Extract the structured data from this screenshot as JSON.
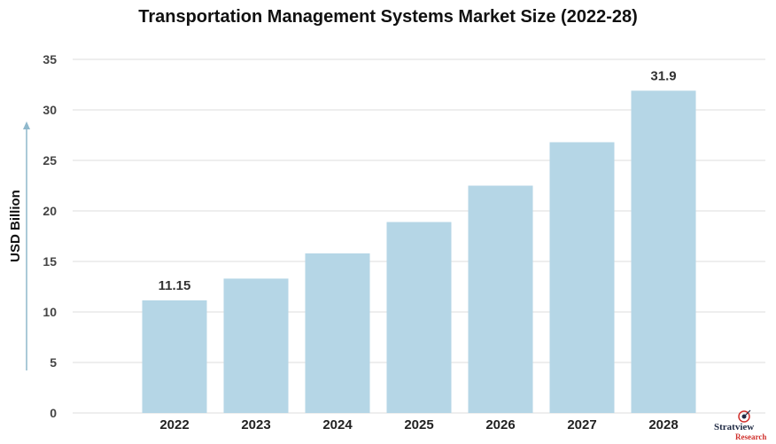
{
  "chart_data": {
    "type": "bar",
    "title": "Transportation Management Systems Market Size (2022-28)",
    "ylabel": "USD Billion",
    "xlabel": "",
    "categories": [
      "2022",
      "2023",
      "2024",
      "2025",
      "2026",
      "2027",
      "2028"
    ],
    "values": [
      11.15,
      13.3,
      15.8,
      18.9,
      22.5,
      26.8,
      31.9
    ],
    "data_labels": [
      {
        "category": "2022",
        "text": "11.15"
      },
      {
        "category": "2028",
        "text": "31.9"
      }
    ],
    "ylim": [
      0,
      35
    ],
    "yticks": [
      "0",
      "5",
      "10",
      "15",
      "20",
      "25",
      "30",
      "35"
    ],
    "grid": true,
    "bar_color": "#b5d6e6"
  },
  "logo": {
    "line1": "Stratview",
    "line2": "Research"
  }
}
